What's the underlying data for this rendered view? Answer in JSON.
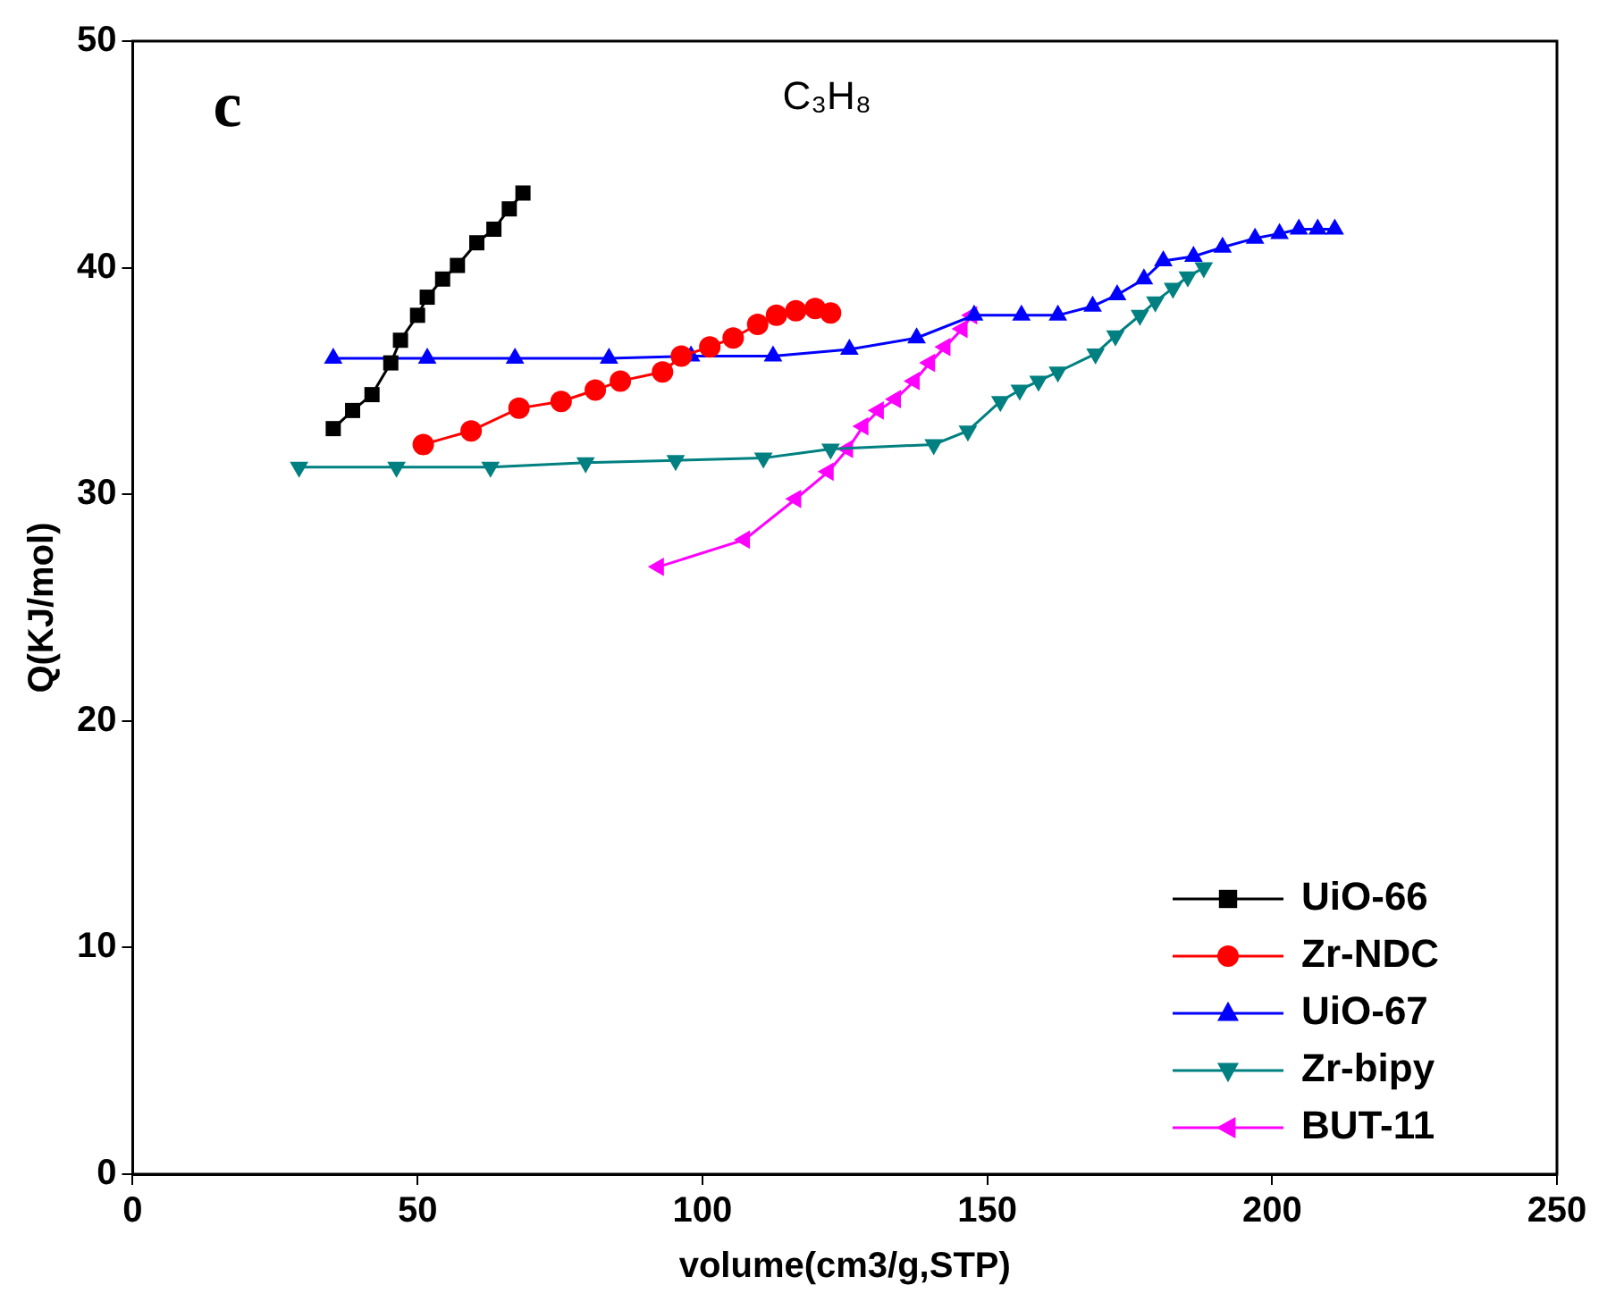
{
  "chart_data": {
    "type": "line",
    "title": "C₃H₈",
    "xlabel": "volume(cm3/g,STP)",
    "ylabel": "Q(KJ/mol)",
    "annotations": [
      "c"
    ],
    "xlim": [
      0,
      250
    ],
    "xticks": [
      0,
      50,
      100,
      150,
      200,
      250
    ],
    "ylim": [
      0,
      50
    ],
    "yticks": [
      0,
      10,
      20,
      30,
      40,
      50
    ],
    "legend": "bottom right",
    "series": [
      {
        "name": "UiO-66",
        "color": "#000000",
        "marker": "square",
        "x": [
          35.2,
          38.6,
          42,
          45.3,
          47,
          50,
          51.7,
          54.4,
          57,
          60.4,
          63.4,
          66.1,
          68.5
        ],
        "values": [
          32.9,
          33.7,
          34.4,
          35.8,
          36.8,
          37.9,
          38.7,
          39.5,
          40.1,
          41.1,
          41.7,
          42.6,
          43.3
        ]
      },
      {
        "name": "Zr-NDC",
        "color": "#ff0000",
        "marker": "circle",
        "x": [
          51,
          59.4,
          67.8,
          75.2,
          81.2,
          85.6,
          93,
          96.3,
          101.3,
          105.4,
          109.7,
          113,
          116.4,
          119.8,
          122.5
        ],
        "values": [
          32.2,
          32.8,
          33.8,
          34.1,
          34.6,
          35.0,
          35.4,
          36.1,
          36.5,
          36.9,
          37.5,
          37.9,
          38.1,
          38.2,
          38.0
        ]
      },
      {
        "name": "UiO-67",
        "color": "#0000ff",
        "marker": "triangle",
        "x": [
          35.2,
          51.7,
          67.1,
          83.6,
          98,
          112.4,
          125.8,
          137.6,
          147.7,
          156,
          162.4,
          168.5,
          172.8,
          177.5,
          180.9,
          186.2,
          191.3,
          197,
          201.3,
          204.7,
          208,
          211
        ],
        "values": [
          36.0,
          36.0,
          36.0,
          36.0,
          36.1,
          36.1,
          36.4,
          36.9,
          37.9,
          37.9,
          37.9,
          38.3,
          38.8,
          39.5,
          40.3,
          40.5,
          40.9,
          41.3,
          41.5,
          41.7,
          41.7,
          41.7
        ]
      },
      {
        "name": "Zr-bipy",
        "color": "#008080",
        "marker": "triangle-down",
        "x": [
          29.2,
          46.3,
          62.8,
          79.5,
          95.3,
          110.7,
          122.5,
          140.6,
          146.6,
          152.3,
          155.7,
          159,
          162.4,
          169,
          172.5,
          176.8,
          179.5,
          182.6,
          185.2,
          188
        ],
        "values": [
          31.2,
          31.2,
          31.2,
          31.4,
          31.5,
          31.6,
          32.0,
          32.2,
          32.8,
          34.1,
          34.6,
          35.0,
          35.4,
          36.2,
          37.0,
          37.9,
          38.5,
          39.1,
          39.6,
          40.0
        ]
      },
      {
        "name": "BUT-11",
        "color": "#ff00ff",
        "marker": "triangle-left",
        "x": [
          92.3,
          107.4,
          116.4,
          122.1,
          125.5,
          128.2,
          130.9,
          133.9,
          137.2,
          139.9,
          142.6,
          145.6,
          147.3
        ],
        "values": [
          26.8,
          28.0,
          29.8,
          31.0,
          32.0,
          33.0,
          33.7,
          34.2,
          35.0,
          35.8,
          36.5,
          37.3,
          37.9
        ]
      }
    ]
  }
}
